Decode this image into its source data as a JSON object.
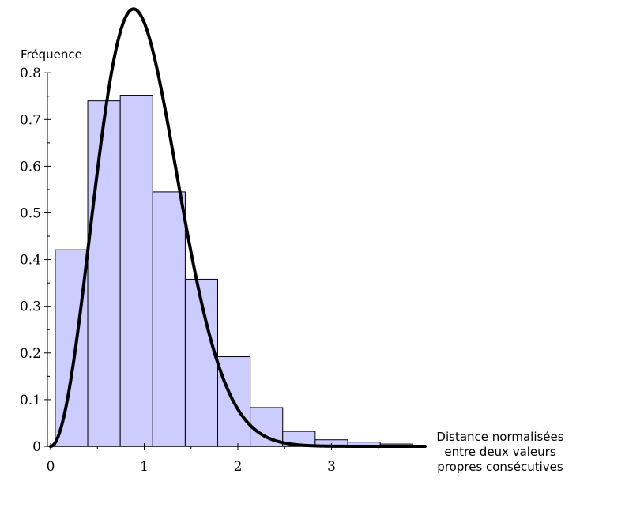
{
  "chart_data": {
    "type": "bar",
    "ylabel": "Fréquence",
    "xlabel_lines": [
      "Distance normalisées",
      "entre deux valeurs",
      "propres consécutives"
    ],
    "xlim": [
      0,
      4
    ],
    "ylim": [
      0,
      0.8
    ],
    "x_ticks": [
      0,
      1,
      2,
      3
    ],
    "y_ticks": [
      0,
      0.1,
      0.2,
      0.3,
      0.4,
      0.5,
      0.6,
      0.7,
      0.8
    ],
    "histogram": {
      "bin_edges": [
        0.05,
        0.397,
        0.744,
        1.091,
        1.438,
        1.785,
        2.132,
        2.479,
        2.826,
        3.173,
        3.52,
        3.867
      ],
      "values": [
        0.421,
        0.74,
        0.752,
        0.545,
        0.358,
        0.192,
        0.083,
        0.032,
        0.014,
        0.009,
        0.005
      ],
      "fill_color": "#ccccff",
      "edge_color": "#000000"
    },
    "curve": {
      "formula": "(32/pi^2) * s^2 * exp(-4 s^2 / pi)",
      "x_range": [
        0,
        4
      ],
      "color": "#000000"
    },
    "grid": false
  }
}
